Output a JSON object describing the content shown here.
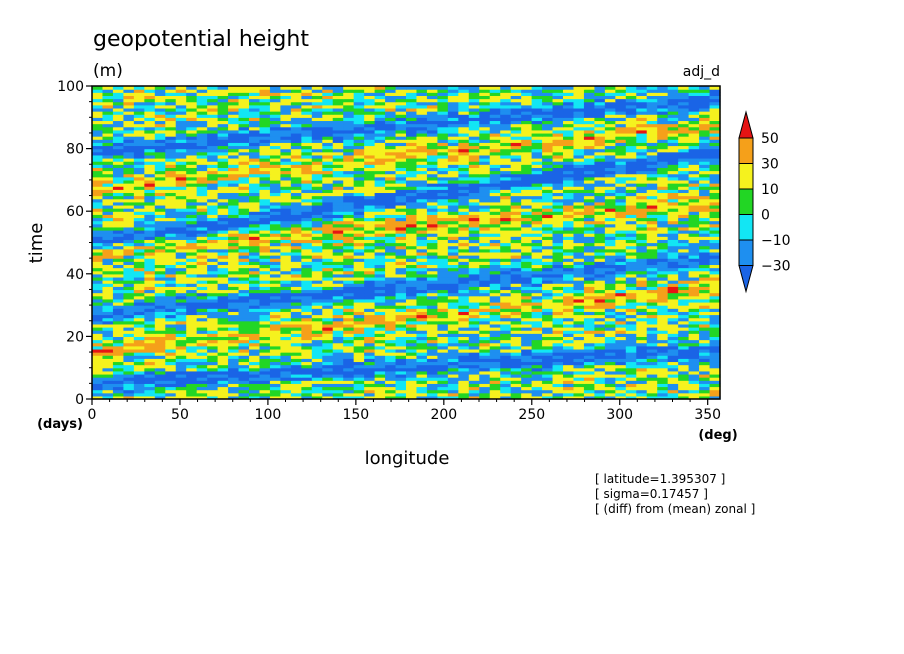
{
  "chart_data": {
    "type": "heatmap",
    "title": "geopotential height",
    "units": "(m)",
    "experiment": "adj_d",
    "xlabel": "longitude",
    "ylabel": "time",
    "x_unit": "(deg)",
    "y_unit": "(days)",
    "xlim": [
      0,
      357
    ],
    "ylim": [
      0,
      100
    ],
    "x_ticks": [
      "0",
      "50",
      "100",
      "150",
      "200",
      "250",
      "300",
      "350"
    ],
    "y_ticks": [
      "0",
      "20",
      "40",
      "60",
      "80",
      "100"
    ],
    "colorbar": {
      "labels": [
        "50",
        "30",
        "10",
        "0",
        "−10",
        "−30"
      ],
      "levels": [
        -30,
        -10,
        0,
        10,
        30,
        50
      ],
      "colors": [
        "#1a64e6",
        "#1e8ff0",
        "#12e6f4",
        "#22d624",
        "#f5f21e",
        "#f5a01a",
        "#e61414"
      ],
      "extend": "both"
    },
    "notes": [
      "[ latitude=1.395307 ]",
      "[ sigma=0.17457 ]",
      "[ (diff) from (mean) zonal ]"
    ],
    "pattern": {
      "description": "noisy eastward-propagating bands; negative (blue) streaks rise from lower-left to upper-right",
      "negative_bands": [
        {
          "x": [
            0,
            357
          ],
          "y": [
            5,
            16
          ]
        },
        {
          "x": [
            0,
            357
          ],
          "y": [
            27,
            45
          ]
        },
        {
          "x": [
            0,
            357
          ],
          "y": [
            50,
            79
          ]
        },
        {
          "x": [
            0,
            357
          ],
          "y": [
            79,
            96
          ]
        }
      ],
      "positive_bands": [
        {
          "x": [
            0,
            357
          ],
          "y": [
            47,
            63
          ]
        },
        {
          "x": [
            0,
            357
          ],
          "y": [
            15,
            36
          ]
        },
        {
          "x": [
            0,
            357
          ],
          "y": [
            67,
            88
          ]
        }
      ]
    }
  }
}
